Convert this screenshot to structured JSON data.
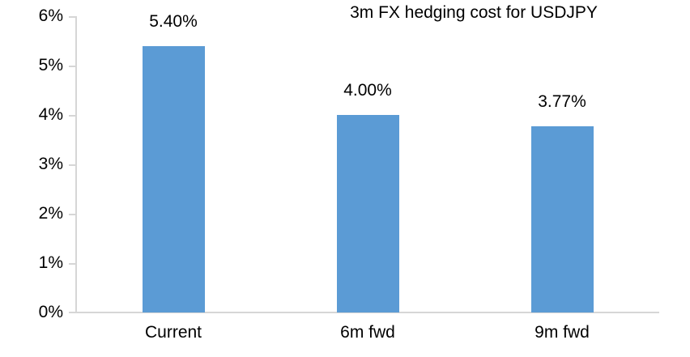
{
  "chart_data": {
    "type": "bar",
    "title": "3m FX hedging cost for USDJPY",
    "categories": [
      "Current",
      "6m fwd",
      "9m fwd"
    ],
    "values": [
      5.4,
      4.0,
      3.77
    ],
    "data_labels": [
      "5.40%",
      "4.00%",
      "3.77%"
    ],
    "y_ticks": [
      "6%",
      "5%",
      "4%",
      "3%",
      "2%",
      "1%",
      "0%"
    ],
    "ylabel": "",
    "xlabel": "",
    "ylim": [
      0,
      6
    ],
    "grid": false,
    "legend": false,
    "bar_color": "#5B9BD5",
    "axis_color": "#D6D6D6",
    "text_color": "#000000"
  }
}
